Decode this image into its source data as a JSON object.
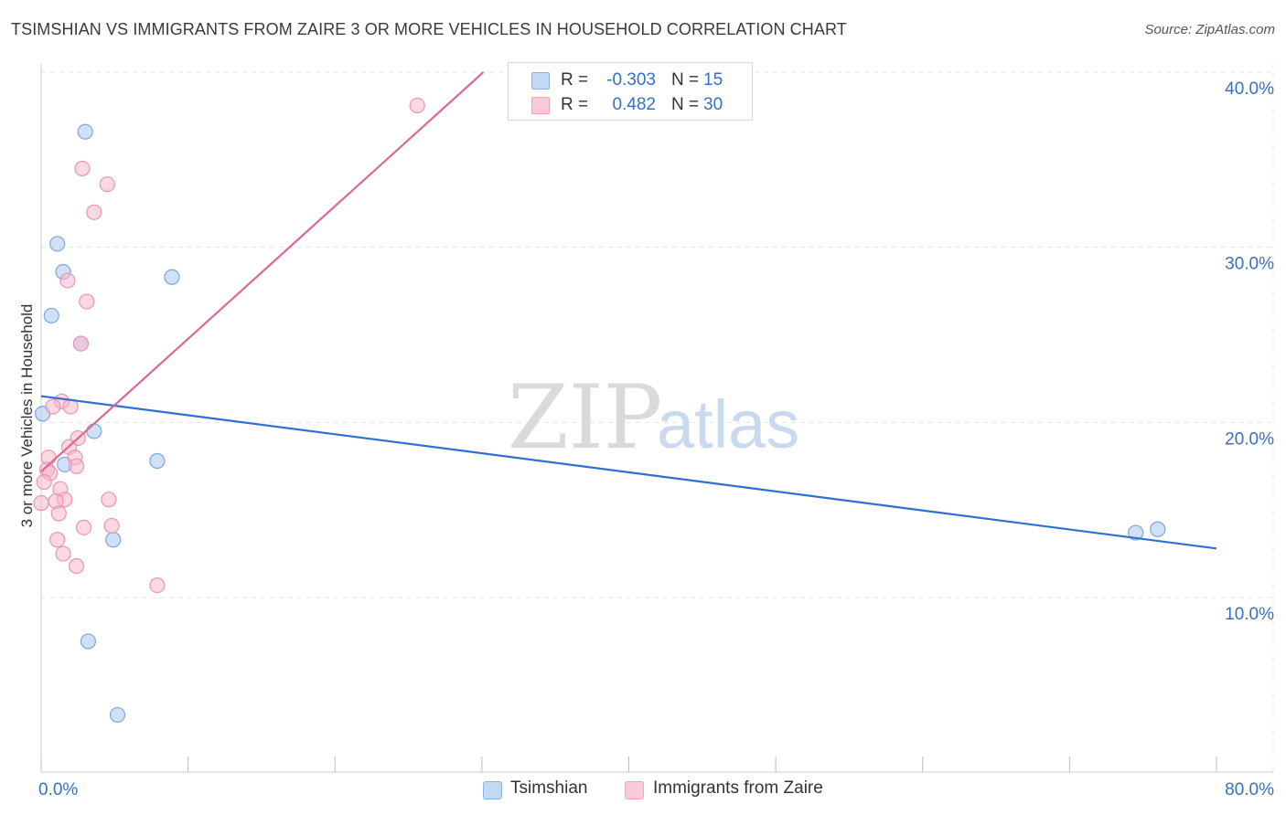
{
  "title": "TSIMSHIAN VS IMMIGRANTS FROM ZAIRE 3 OR MORE VEHICLES IN HOUSEHOLD CORRELATION CHART",
  "source": "Source: ZipAtlas.com",
  "watermark": {
    "zip": "ZIP",
    "atlas": "atlas"
  },
  "legend": {
    "rows": [
      {
        "r_label": "R =",
        "r_value": "-0.303",
        "n_label": "N =",
        "n_value": "15"
      },
      {
        "r_label": "R =",
        "r_value": "0.482",
        "n_label": "N =",
        "n_value": "30"
      }
    ]
  },
  "bottom_legend": {
    "series1": "Tsimshian",
    "series2": "Immigrants from Zaire"
  },
  "colors": {
    "tsimshian_fill": "#a9c8f0",
    "tsimshian_stroke": "#7aa6df",
    "tsimshian_line": "#2f6fcf",
    "zaire_fill": "#f7b8cb",
    "zaire_stroke": "#ee93b0",
    "zaire_line": "#e0678e",
    "tick_label": "#3370c8",
    "grid": "#e4e4e4"
  },
  "chart_data": {
    "type": "scatter",
    "title": "TSIMSHIAN VS IMMIGRANTS FROM ZAIRE 3 OR MORE VEHICLES IN HOUSEHOLD CORRELATION CHART",
    "xlabel": "",
    "ylabel": "3 or more Vehicles in Household",
    "xlim": [
      0,
      80
    ],
    "ylim": [
      0,
      42
    ],
    "x_ticks": [
      0,
      80
    ],
    "x_tick_labels": [
      "0.0%",
      "80.0%"
    ],
    "y_ticks": [
      10,
      20,
      30,
      40
    ],
    "y_tick_labels": [
      "10.0%",
      "20.0%",
      "30.0%",
      "40.0%"
    ],
    "series": [
      {
        "name": "Tsimshian",
        "points": [
          [
            3.0,
            36.6
          ],
          [
            1.1,
            30.2
          ],
          [
            1.5,
            28.6
          ],
          [
            8.9,
            28.3
          ],
          [
            0.7,
            26.1
          ],
          [
            2.7,
            24.5
          ],
          [
            0.1,
            20.5
          ],
          [
            3.6,
            19.5
          ],
          [
            1.6,
            17.6
          ],
          [
            7.9,
            17.8
          ],
          [
            4.9,
            13.3
          ],
          [
            3.2,
            7.5
          ],
          [
            5.2,
            3.3
          ],
          [
            74.5,
            13.7
          ],
          [
            76.0,
            13.9
          ]
        ],
        "trend": {
          "x": [
            0,
            80
          ],
          "y": [
            21.5,
            12.8
          ]
        }
      },
      {
        "name": "Immigrants from Zaire",
        "points": [
          [
            25.6,
            38.1
          ],
          [
            2.8,
            34.5
          ],
          [
            4.5,
            33.6
          ],
          [
            3.6,
            32.0
          ],
          [
            1.8,
            28.1
          ],
          [
            3.1,
            26.9
          ],
          [
            2.7,
            24.5
          ],
          [
            1.4,
            21.2
          ],
          [
            2.0,
            20.9
          ],
          [
            0.8,
            20.9
          ],
          [
            2.5,
            19.1
          ],
          [
            1.9,
            18.6
          ],
          [
            0.5,
            18.0
          ],
          [
            2.3,
            18.0
          ],
          [
            2.4,
            17.5
          ],
          [
            0.4,
            17.3
          ],
          [
            0.6,
            17.1
          ],
          [
            0.2,
            16.6
          ],
          [
            1.3,
            16.2
          ],
          [
            1.6,
            15.6
          ],
          [
            1.0,
            15.5
          ],
          [
            0.0,
            15.4
          ],
          [
            4.6,
            15.6
          ],
          [
            1.2,
            14.8
          ],
          [
            2.9,
            14.0
          ],
          [
            4.8,
            14.1
          ],
          [
            1.1,
            13.3
          ],
          [
            1.5,
            12.5
          ],
          [
            2.4,
            11.8
          ],
          [
            7.9,
            10.7
          ]
        ],
        "trend": {
          "x": [
            0,
            30.1
          ],
          "y": [
            17.2,
            40.0
          ]
        }
      }
    ]
  }
}
